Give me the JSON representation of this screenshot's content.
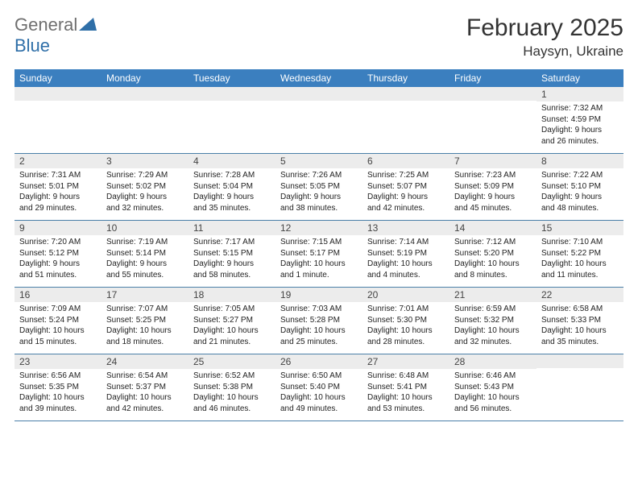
{
  "brand": {
    "general": "General",
    "blue": "Blue"
  },
  "header": {
    "title": "February 2025",
    "location": "Haysyn, Ukraine"
  },
  "colors": {
    "header_bg": "#3b7fbf",
    "daynum_bg": "#ececec",
    "row_border": "#4a7fa8",
    "logo_blue": "#2f6fa8",
    "logo_gray": "#6f6f6f"
  },
  "weekdays": [
    "Sunday",
    "Monday",
    "Tuesday",
    "Wednesday",
    "Thursday",
    "Friday",
    "Saturday"
  ],
  "weeks": [
    [
      null,
      null,
      null,
      null,
      null,
      null,
      {
        "n": "1",
        "sr": "Sunrise: 7:32 AM",
        "ss": "Sunset: 4:59 PM",
        "d1": "Daylight: 9 hours",
        "d2": "and 26 minutes."
      }
    ],
    [
      {
        "n": "2",
        "sr": "Sunrise: 7:31 AM",
        "ss": "Sunset: 5:01 PM",
        "d1": "Daylight: 9 hours",
        "d2": "and 29 minutes."
      },
      {
        "n": "3",
        "sr": "Sunrise: 7:29 AM",
        "ss": "Sunset: 5:02 PM",
        "d1": "Daylight: 9 hours",
        "d2": "and 32 minutes."
      },
      {
        "n": "4",
        "sr": "Sunrise: 7:28 AM",
        "ss": "Sunset: 5:04 PM",
        "d1": "Daylight: 9 hours",
        "d2": "and 35 minutes."
      },
      {
        "n": "5",
        "sr": "Sunrise: 7:26 AM",
        "ss": "Sunset: 5:05 PM",
        "d1": "Daylight: 9 hours",
        "d2": "and 38 minutes."
      },
      {
        "n": "6",
        "sr": "Sunrise: 7:25 AM",
        "ss": "Sunset: 5:07 PM",
        "d1": "Daylight: 9 hours",
        "d2": "and 42 minutes."
      },
      {
        "n": "7",
        "sr": "Sunrise: 7:23 AM",
        "ss": "Sunset: 5:09 PM",
        "d1": "Daylight: 9 hours",
        "d2": "and 45 minutes."
      },
      {
        "n": "8",
        "sr": "Sunrise: 7:22 AM",
        "ss": "Sunset: 5:10 PM",
        "d1": "Daylight: 9 hours",
        "d2": "and 48 minutes."
      }
    ],
    [
      {
        "n": "9",
        "sr": "Sunrise: 7:20 AM",
        "ss": "Sunset: 5:12 PM",
        "d1": "Daylight: 9 hours",
        "d2": "and 51 minutes."
      },
      {
        "n": "10",
        "sr": "Sunrise: 7:19 AM",
        "ss": "Sunset: 5:14 PM",
        "d1": "Daylight: 9 hours",
        "d2": "and 55 minutes."
      },
      {
        "n": "11",
        "sr": "Sunrise: 7:17 AM",
        "ss": "Sunset: 5:15 PM",
        "d1": "Daylight: 9 hours",
        "d2": "and 58 minutes."
      },
      {
        "n": "12",
        "sr": "Sunrise: 7:15 AM",
        "ss": "Sunset: 5:17 PM",
        "d1": "Daylight: 10 hours",
        "d2": "and 1 minute."
      },
      {
        "n": "13",
        "sr": "Sunrise: 7:14 AM",
        "ss": "Sunset: 5:19 PM",
        "d1": "Daylight: 10 hours",
        "d2": "and 4 minutes."
      },
      {
        "n": "14",
        "sr": "Sunrise: 7:12 AM",
        "ss": "Sunset: 5:20 PM",
        "d1": "Daylight: 10 hours",
        "d2": "and 8 minutes."
      },
      {
        "n": "15",
        "sr": "Sunrise: 7:10 AM",
        "ss": "Sunset: 5:22 PM",
        "d1": "Daylight: 10 hours",
        "d2": "and 11 minutes."
      }
    ],
    [
      {
        "n": "16",
        "sr": "Sunrise: 7:09 AM",
        "ss": "Sunset: 5:24 PM",
        "d1": "Daylight: 10 hours",
        "d2": "and 15 minutes."
      },
      {
        "n": "17",
        "sr": "Sunrise: 7:07 AM",
        "ss": "Sunset: 5:25 PM",
        "d1": "Daylight: 10 hours",
        "d2": "and 18 minutes."
      },
      {
        "n": "18",
        "sr": "Sunrise: 7:05 AM",
        "ss": "Sunset: 5:27 PM",
        "d1": "Daylight: 10 hours",
        "d2": "and 21 minutes."
      },
      {
        "n": "19",
        "sr": "Sunrise: 7:03 AM",
        "ss": "Sunset: 5:28 PM",
        "d1": "Daylight: 10 hours",
        "d2": "and 25 minutes."
      },
      {
        "n": "20",
        "sr": "Sunrise: 7:01 AM",
        "ss": "Sunset: 5:30 PM",
        "d1": "Daylight: 10 hours",
        "d2": "and 28 minutes."
      },
      {
        "n": "21",
        "sr": "Sunrise: 6:59 AM",
        "ss": "Sunset: 5:32 PM",
        "d1": "Daylight: 10 hours",
        "d2": "and 32 minutes."
      },
      {
        "n": "22",
        "sr": "Sunrise: 6:58 AM",
        "ss": "Sunset: 5:33 PM",
        "d1": "Daylight: 10 hours",
        "d2": "and 35 minutes."
      }
    ],
    [
      {
        "n": "23",
        "sr": "Sunrise: 6:56 AM",
        "ss": "Sunset: 5:35 PM",
        "d1": "Daylight: 10 hours",
        "d2": "and 39 minutes."
      },
      {
        "n": "24",
        "sr": "Sunrise: 6:54 AM",
        "ss": "Sunset: 5:37 PM",
        "d1": "Daylight: 10 hours",
        "d2": "and 42 minutes."
      },
      {
        "n": "25",
        "sr": "Sunrise: 6:52 AM",
        "ss": "Sunset: 5:38 PM",
        "d1": "Daylight: 10 hours",
        "d2": "and 46 minutes."
      },
      {
        "n": "26",
        "sr": "Sunrise: 6:50 AM",
        "ss": "Sunset: 5:40 PM",
        "d1": "Daylight: 10 hours",
        "d2": "and 49 minutes."
      },
      {
        "n": "27",
        "sr": "Sunrise: 6:48 AM",
        "ss": "Sunset: 5:41 PM",
        "d1": "Daylight: 10 hours",
        "d2": "and 53 minutes."
      },
      {
        "n": "28",
        "sr": "Sunrise: 6:46 AM",
        "ss": "Sunset: 5:43 PM",
        "d1": "Daylight: 10 hours",
        "d2": "and 56 minutes."
      },
      null
    ]
  ]
}
